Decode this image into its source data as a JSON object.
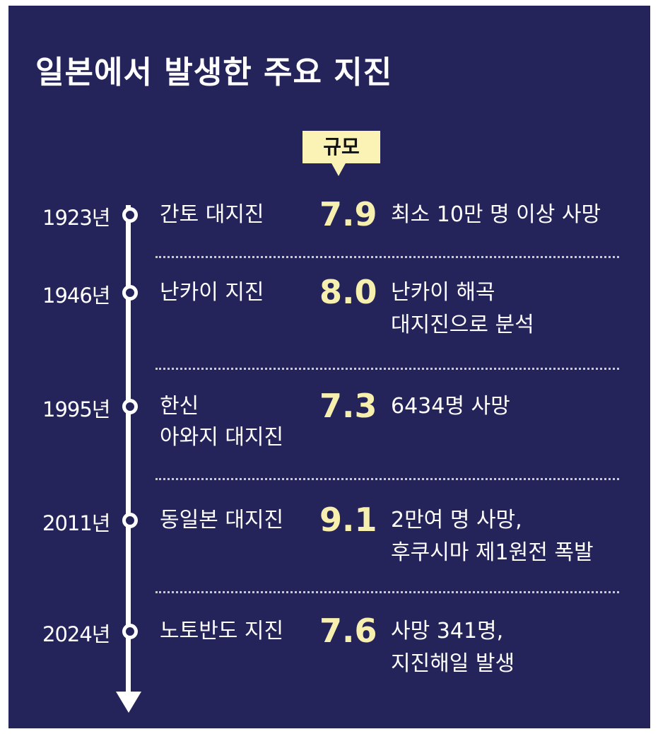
{
  "title": "일본에서 발생한 주요 지진",
  "callout_label": "규모",
  "colors": {
    "background": "#24245a",
    "accent": "#f6efae",
    "callout": "#fbf2b6",
    "text": "#ffffff"
  },
  "icons": {
    "timeline": "down-arrow-icon",
    "marker": "circle-dot-icon"
  },
  "chart_data": {
    "type": "table",
    "columns": [
      "year",
      "name",
      "magnitude",
      "description"
    ],
    "rows": [
      {
        "year": "1923년",
        "name": [
          "간토 대지진"
        ],
        "magnitude": "7.9",
        "desc": [
          "최소 10만 명 이상 사망"
        ]
      },
      {
        "year": "1946년",
        "name": [
          "난카이 지진"
        ],
        "magnitude": "8.0",
        "desc": [
          "난카이 해곡",
          "대지진으로 분석"
        ]
      },
      {
        "year": "1995년",
        "name": [
          "한신",
          "아와지 대지진"
        ],
        "magnitude": "7.3",
        "desc": [
          "6434명 사망"
        ]
      },
      {
        "year": "2011년",
        "name": [
          "동일본 대지진"
        ],
        "magnitude": "9.1",
        "desc": [
          "2만여 명 사망,",
          "후쿠시마 제1원전 폭발"
        ]
      },
      {
        "year": "2024년",
        "name": [
          "노토반도 지진"
        ],
        "magnitude": "7.6",
        "desc": [
          "사망 341명,",
          "지진해일 발생"
        ]
      }
    ]
  }
}
